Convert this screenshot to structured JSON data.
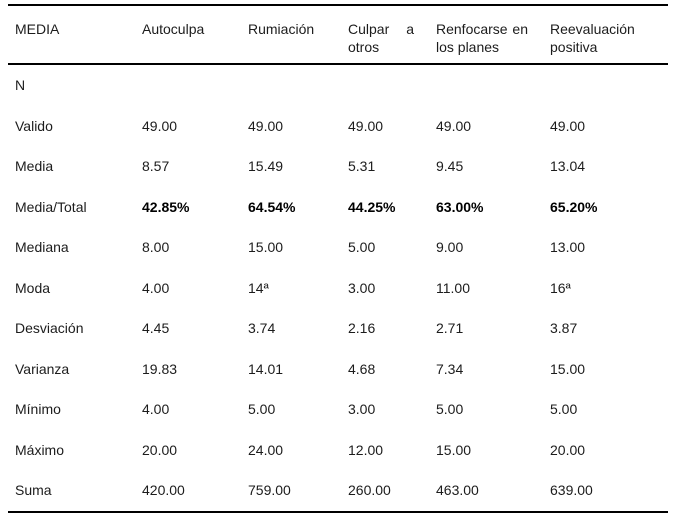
{
  "page": {
    "background": "#ffffff",
    "text_color": "#1c1c1c",
    "rule_color": "#000000"
  },
  "table": {
    "header": {
      "col0": "MEDIA",
      "columns": [
        {
          "line1": [
            "Autoculpa"
          ],
          "line2": ""
        },
        {
          "line1": [
            "Rumiación"
          ],
          "line2": ""
        },
        {
          "line1": [
            "Culpar",
            "a"
          ],
          "line2": "otros"
        },
        {
          "line1": [
            "Renfocarse",
            "en"
          ],
          "line2": "los planes"
        },
        {
          "line1": [
            "Reevaluación"
          ],
          "line2": "positiva"
        }
      ]
    },
    "rows": [
      {
        "label": "N",
        "values": [
          "",
          "",
          "",
          "",
          ""
        ],
        "bold": false
      },
      {
        "label": "Valido",
        "values": [
          "49.00",
          "49.00",
          "49.00",
          "49.00",
          "49.00"
        ],
        "bold": false
      },
      {
        "label": "Media",
        "values": [
          "8.57",
          "15.49",
          "5.31",
          "9.45",
          "13.04"
        ],
        "bold": false
      },
      {
        "label": "Media/Total",
        "values": [
          "42.85%",
          "64.54%",
          "44.25%",
          "63.00%",
          "65.20%"
        ],
        "bold": true
      },
      {
        "label": "Mediana",
        "values": [
          "8.00",
          "15.00",
          "5.00",
          "9.00",
          "13.00"
        ],
        "bold": false
      },
      {
        "label": "Moda",
        "values": [
          "4.00",
          "14ª",
          "3.00",
          "11.00",
          "16ª"
        ],
        "bold": false
      },
      {
        "label": "Desviación",
        "values": [
          "4.45",
          "3.74",
          "2.16",
          "2.71",
          "3.87"
        ],
        "bold": false
      },
      {
        "label": "Varianza",
        "values": [
          "19.83",
          "14.01",
          "4.68",
          "7.34",
          "15.00"
        ],
        "bold": false
      },
      {
        "label": "Mínimo",
        "values": [
          "4.00",
          "5.00",
          "3.00",
          "5.00",
          "5.00"
        ],
        "bold": false
      },
      {
        "label": "Máximo",
        "values": [
          "20.00",
          "24.00",
          "12.00",
          "15.00",
          "20.00"
        ],
        "bold": false
      },
      {
        "label": "Suma",
        "values": [
          "420.00",
          "759.00",
          "260.00",
          "463.00",
          "639.00"
        ],
        "bold": false
      }
    ]
  }
}
